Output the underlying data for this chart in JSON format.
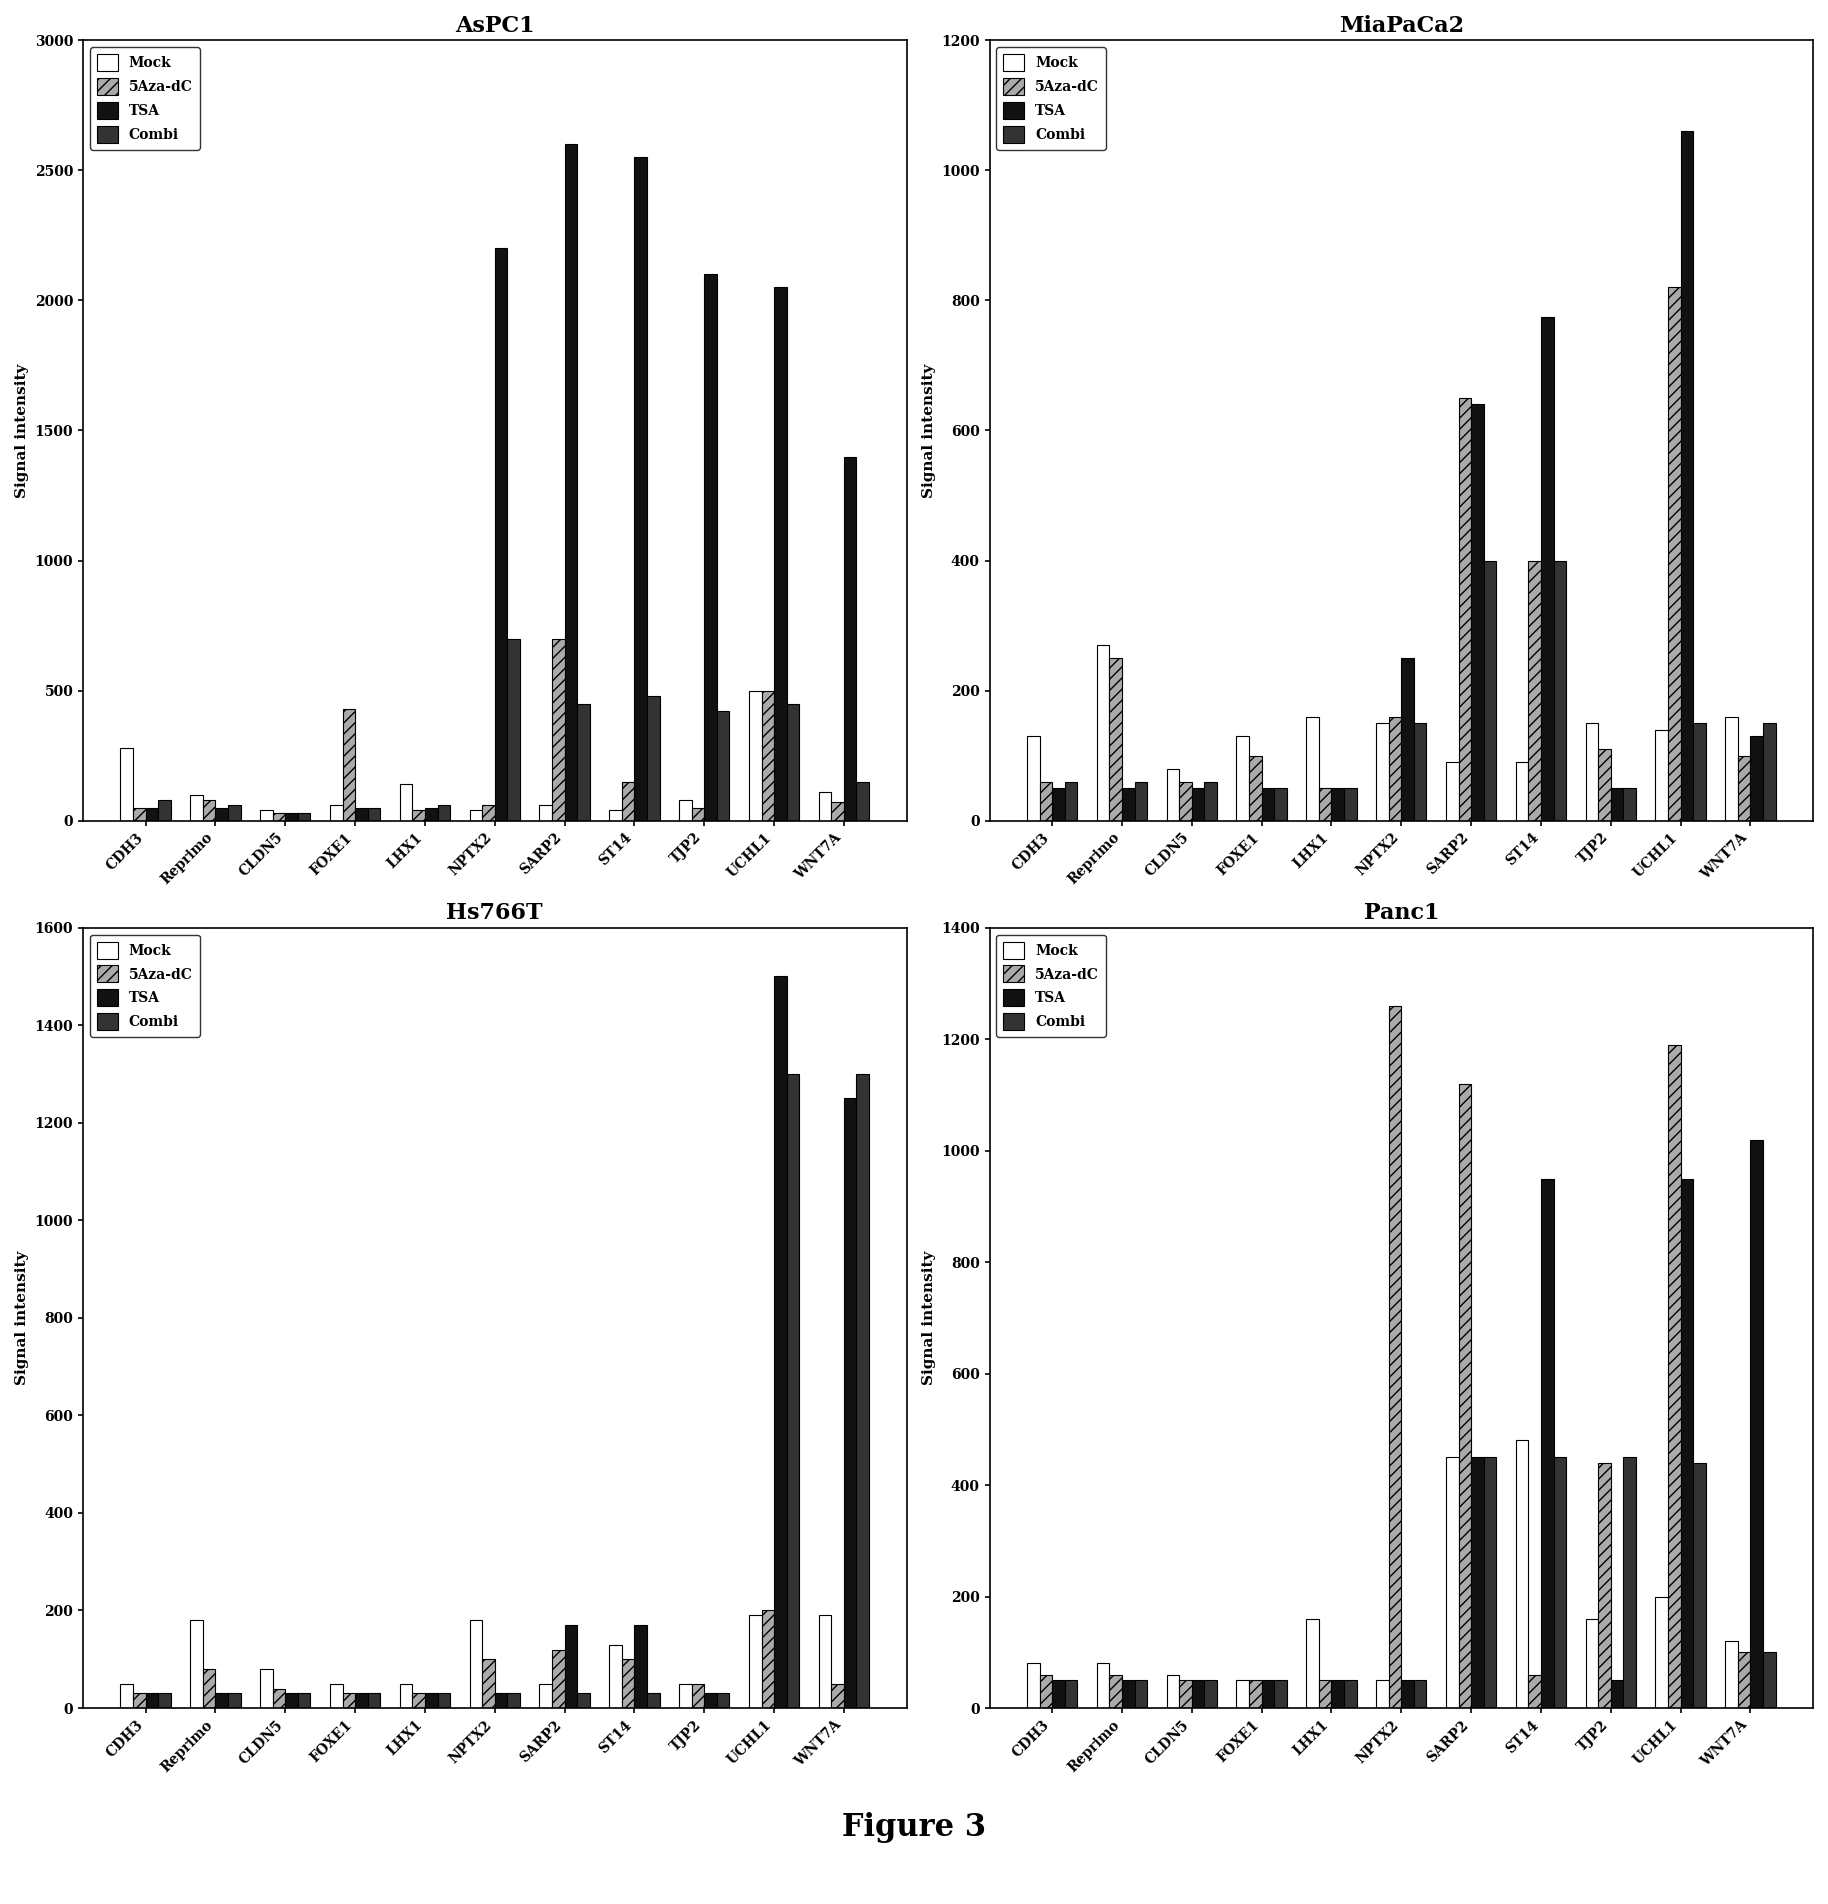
{
  "figure_title": "Figure 3",
  "genes": [
    "CDH3",
    "Reprimo",
    "CLDN5",
    "FOXE1",
    "LHX1",
    "NPTX2",
    "SARP2",
    "ST14",
    "TJP2",
    "UCHL1",
    "WNT7A"
  ],
  "treatments": [
    "Mock",
    "5Aza-dC",
    "TSA",
    "Combi"
  ],
  "colors": [
    "#ffffff",
    "#888888",
    "#222222",
    "#444444"
  ],
  "edge_colors": [
    "#000000",
    "#000000",
    "#000000",
    "#000000"
  ],
  "subplots": [
    {
      "title": "AsPC1",
      "ylim": [
        0,
        3000
      ],
      "yticks": [
        0,
        500,
        1000,
        1500,
        2000,
        2500,
        3000
      ],
      "data": {
        "Mock": [
          280,
          100,
          40,
          60,
          140,
          40,
          60,
          40,
          80,
          500,
          110
        ],
        "5Aza-dC": [
          50,
          80,
          30,
          430,
          40,
          60,
          700,
          150,
          50,
          500,
          70
        ],
        "TSA": [
          50,
          50,
          30,
          50,
          50,
          2200,
          2600,
          2550,
          2100,
          2050,
          1400
        ],
        "Combi": [
          80,
          60,
          30,
          50,
          60,
          700,
          450,
          480,
          420,
          450,
          150
        ]
      }
    },
    {
      "title": "MiaPaCa2",
      "ylim": [
        0,
        1200
      ],
      "yticks": [
        0,
        200,
        400,
        600,
        800,
        1000,
        1200
      ],
      "data": {
        "Mock": [
          130,
          270,
          80,
          130,
          160,
          150,
          90,
          90,
          150,
          140,
          160
        ],
        "5Aza-dC": [
          60,
          250,
          60,
          100,
          50,
          160,
          650,
          400,
          110,
          820,
          100
        ],
        "TSA": [
          50,
          50,
          50,
          50,
          50,
          250,
          640,
          775,
          50,
          1060,
          130
        ],
        "Combi": [
          60,
          60,
          60,
          50,
          50,
          150,
          400,
          400,
          50,
          150,
          150
        ]
      }
    },
    {
      "title": "Hs766T",
      "ylim": [
        0,
        1600
      ],
      "yticks": [
        0,
        200,
        400,
        600,
        800,
        1000,
        1200,
        1400,
        1600
      ],
      "data": {
        "Mock": [
          50,
          180,
          80,
          50,
          50,
          180,
          50,
          130,
          50,
          190,
          190
        ],
        "5Aza-dC": [
          30,
          80,
          40,
          30,
          30,
          100,
          120,
          100,
          50,
          200,
          50
        ],
        "TSA": [
          30,
          30,
          30,
          30,
          30,
          30,
          170,
          170,
          30,
          1500,
          1250
        ],
        "Combi": [
          30,
          30,
          30,
          30,
          30,
          30,
          30,
          30,
          30,
          1300,
          1300
        ]
      }
    },
    {
      "title": "Panc1",
      "ylim": [
        0,
        1400
      ],
      "yticks": [
        0,
        200,
        400,
        600,
        800,
        1000,
        1200,
        1400
      ],
      "data": {
        "Mock": [
          80,
          80,
          60,
          50,
          160,
          50,
          450,
          480,
          160,
          200,
          120
        ],
        "5Aza-dC": [
          60,
          60,
          50,
          50,
          50,
          1260,
          1120,
          60,
          440,
          1190,
          100
        ],
        "TSA": [
          50,
          50,
          50,
          50,
          50,
          50,
          450,
          950,
          50,
          950,
          1020
        ],
        "Combi": [
          50,
          50,
          50,
          50,
          50,
          50,
          450,
          450,
          450,
          440,
          100
        ]
      }
    }
  ],
  "ylabel": "Signal intensity",
  "bar_width": 0.18,
  "legend_labels": [
    "Mock",
    "5Aza-dC",
    "TSA",
    "Combi"
  ]
}
